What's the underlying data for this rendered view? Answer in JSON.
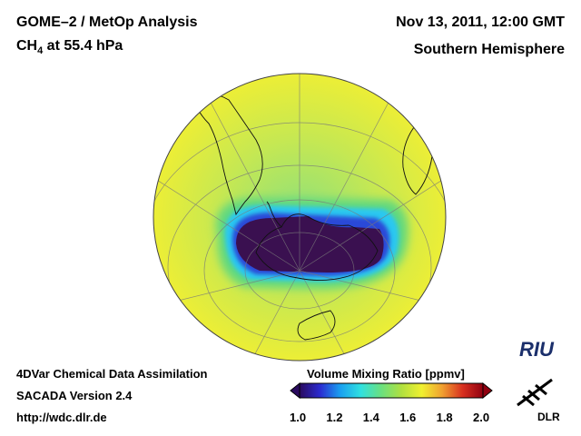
{
  "header": {
    "title_line1": "GOME–2 / MetOp Analysis",
    "title_species": "CH",
    "title_species_sub": "4",
    "title_level": " at 55.4 hPa",
    "date": "Nov 13, 2011, 12:00 GMT",
    "region": "Southern Hemisphere"
  },
  "footer": {
    "line1": "4DVar Chemical Data Assimilation",
    "line2": "SACADA Version 2.4",
    "line3": "http://wdc.dlr.de"
  },
  "colorbar": {
    "title": "Volume Mixing Ratio [ppmv]",
    "ticks": [
      "1.0",
      "1.2",
      "1.4",
      "1.6",
      "1.8",
      "2.0"
    ],
    "colors": [
      "#2a0a5e",
      "#2b2bd0",
      "#1aa0f0",
      "#30e0e0",
      "#6ae080",
      "#b0e040",
      "#f0f030",
      "#f0a030",
      "#d83020",
      "#900010"
    ]
  },
  "map": {
    "projection": "orthographic",
    "hemisphere": "south",
    "background_color": "#e6ee3a",
    "low_value_color": "#3a1050"
  },
  "logos": {
    "riu": "RIU",
    "dlr": "DLR"
  }
}
